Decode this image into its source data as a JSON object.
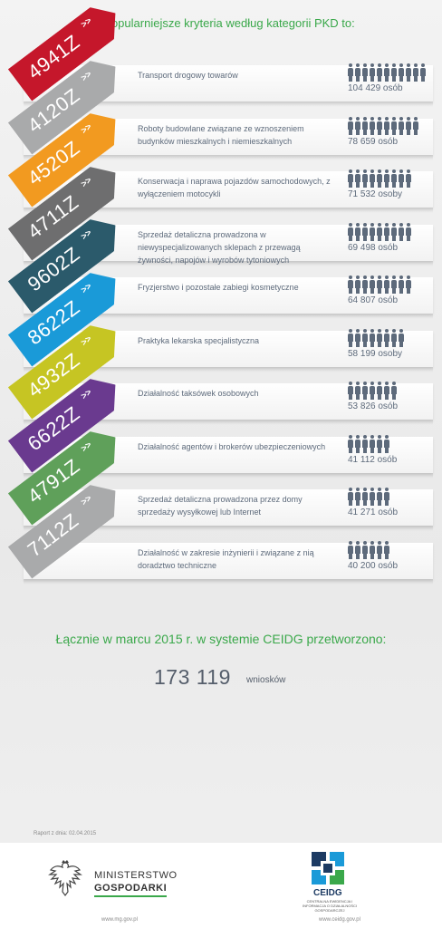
{
  "header": {
    "title": "Najpopularniejsze kryteria według kategorii PKD to:"
  },
  "rows": [
    {
      "code": "4941Z",
      "color": "#c5172b",
      "label": "Transport drogowy towarów",
      "count": "104 429 osób",
      "icons": 11
    },
    {
      "code": "4120Z",
      "color": "#a9aaab",
      "label": "Roboty budowlane związane ze wznoszeniem budynków mieszkalnych i niemieszkalnych",
      "count": "78 659 osób",
      "icons": 10
    },
    {
      "code": "4520Z",
      "color": "#f29a20",
      "label": "Konserwacja i naprawa pojazdów samochodowych, z wyłączeniem motocykli",
      "count": "71 532 osoby",
      "icons": 9
    },
    {
      "code": "4711Z",
      "color": "#6e6e6f",
      "label": "Sprzedaż detaliczna prowadzona w niewyspecjalizowanych sklepach z przewagą żywności, napojów i wyrobów tytoniowych",
      "count": "69 498 osób",
      "icons": 9
    },
    {
      "code": "9602Z",
      "color": "#2b5a6b",
      "label": "Fryzjerstwo i pozostałe zabiegi kosmetyczne",
      "count": "64 807 osób",
      "icons": 9
    },
    {
      "code": "8622Z",
      "color": "#1a9ad8",
      "label": "Praktyka lekarska specjalistyczna",
      "count": "58 199 osoby",
      "icons": 8
    },
    {
      "code": "4932Z",
      "color": "#c6c523",
      "label": "Działalność taksówek osobowych",
      "count": "53 826 osób",
      "icons": 7
    },
    {
      "code": "6622Z",
      "color": "#6a3a8f",
      "label": "Działalność agentów i brokerów ubezpieczeniowych",
      "count": "41 112 osób",
      "icons": 6
    },
    {
      "code": "4791Z",
      "color": "#5fa05a",
      "label": "Sprzedaż detaliczna prowadzona przez domy sprzedaży wysyłkowej lub Internet",
      "count": "41 271 osób",
      "icons": 6
    },
    {
      "code": "7112Z",
      "color": "#a9aaab",
      "label": "Działalność w zakresie inżynierii i związane z nią doradztwo techniczne",
      "count": "40 200 osób",
      "icons": 6
    }
  ],
  "chevron": ">>",
  "summary": {
    "title": "Łącznie w marcu 2015 r. w systemie CEIDG przetworzono:",
    "value": "173 119",
    "unit": "wniosków"
  },
  "report_date": "Raport z dnia: 02.04.2015",
  "footer": {
    "mg_line1": "MINISTERSTWO",
    "mg_line2": "GOSPODARKI",
    "mg_url": "www.mg.gov.pl",
    "ceidg_name": "CEIDG",
    "ceidg_sub": "CENTRALNA EWIDENCJA I INFORMACJA O DZIAŁALNOŚCI GOSPODARCZEJ",
    "ceidg_url": "www.ceidg.gov.pl"
  }
}
